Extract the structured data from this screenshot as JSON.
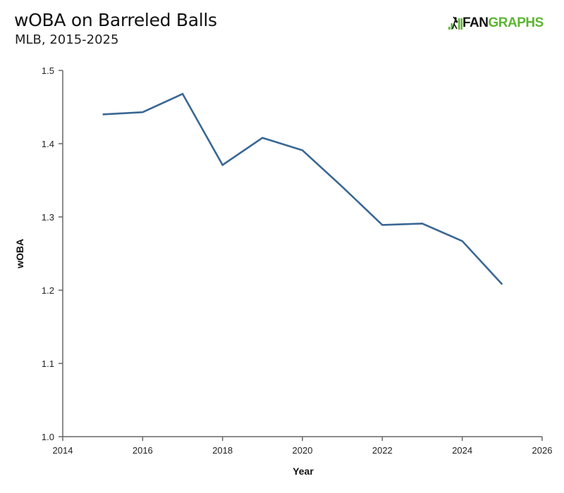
{
  "header": {
    "title": "wOBA on Barreled Balls",
    "subtitle": "MLB, 2015-2025"
  },
  "logo": {
    "part1": "FAN",
    "part2": "GRAPHS",
    "accent_color": "#5cb531"
  },
  "chart_data": {
    "type": "line",
    "title": "wOBA on Barreled Balls",
    "subtitle": "MLB, 2015-2025",
    "xlabel": "Year",
    "ylabel": "wOBA",
    "xlim": [
      2014,
      2026
    ],
    "ylim": [
      1.0,
      1.5
    ],
    "xticks": [
      "2014",
      "2016",
      "2018",
      "2020",
      "2022",
      "2024",
      "2026"
    ],
    "yticks": [
      "1.0",
      "1.1",
      "1.2",
      "1.3",
      "1.4",
      "1.5"
    ],
    "grid": false,
    "legend": "none",
    "line_color": "#3a6794",
    "series": [
      {
        "name": "wOBA",
        "x": [
          2015,
          2016,
          2017,
          2018,
          2019,
          2020,
          2021,
          2022,
          2023,
          2024,
          2025
        ],
        "values": [
          1.44,
          1.443,
          1.468,
          1.371,
          1.408,
          1.391,
          1.341,
          1.289,
          1.291,
          1.267,
          1.208
        ]
      }
    ]
  }
}
